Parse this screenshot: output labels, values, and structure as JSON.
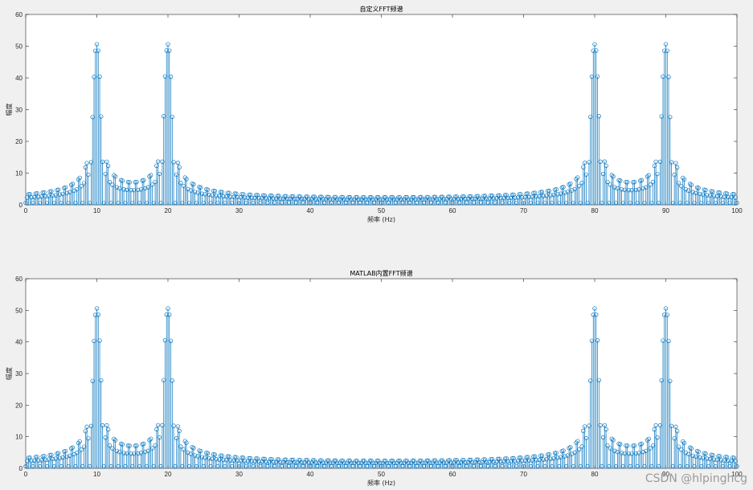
{
  "colors": {
    "background": "#f0f0f0",
    "axes_bg": "#ffffff",
    "stem": "#0072bd",
    "grid": "#e6e6e6",
    "axis": "#262626"
  },
  "watermark": "CSDN @hlpinghcg",
  "chart_data": [
    {
      "type": "stem",
      "title": "自定义FFT频谱",
      "xlabel": "频率 (Hz)",
      "ylabel": "幅度",
      "xlim": [
        0,
        100
      ],
      "ylim": [
        0,
        60
      ],
      "xticks": [
        0,
        10,
        20,
        30,
        40,
        50,
        60,
        70,
        80,
        90,
        100
      ],
      "yticks": [
        0,
        10,
        20,
        30,
        40,
        50,
        60
      ],
      "grid": false,
      "marker": "circle",
      "sample_step": 0.2,
      "peaks": [
        {
          "frequency": 10,
          "amplitude": 50
        },
        {
          "frequency": 20,
          "amplitude": 50
        },
        {
          "frequency": 80,
          "amplitude": 50
        },
        {
          "frequency": 90,
          "amplitude": 50
        }
      ]
    },
    {
      "type": "stem",
      "title": "MATLAB内置FFT频谱",
      "xlabel": "频率 (Hz)",
      "ylabel": "幅度",
      "xlim": [
        0,
        100
      ],
      "ylim": [
        0,
        60
      ],
      "xticks": [
        0,
        10,
        20,
        30,
        40,
        50,
        60,
        70,
        80,
        90,
        100
      ],
      "yticks": [
        0,
        10,
        20,
        30,
        40,
        50,
        60
      ],
      "grid": false,
      "marker": "circle",
      "sample_step": 0.2,
      "peaks": [
        {
          "frequency": 10,
          "amplitude": 50
        },
        {
          "frequency": 20,
          "amplitude": 50
        },
        {
          "frequency": 80,
          "amplitude": 50
        },
        {
          "frequency": 90,
          "amplitude": 50
        }
      ]
    }
  ]
}
